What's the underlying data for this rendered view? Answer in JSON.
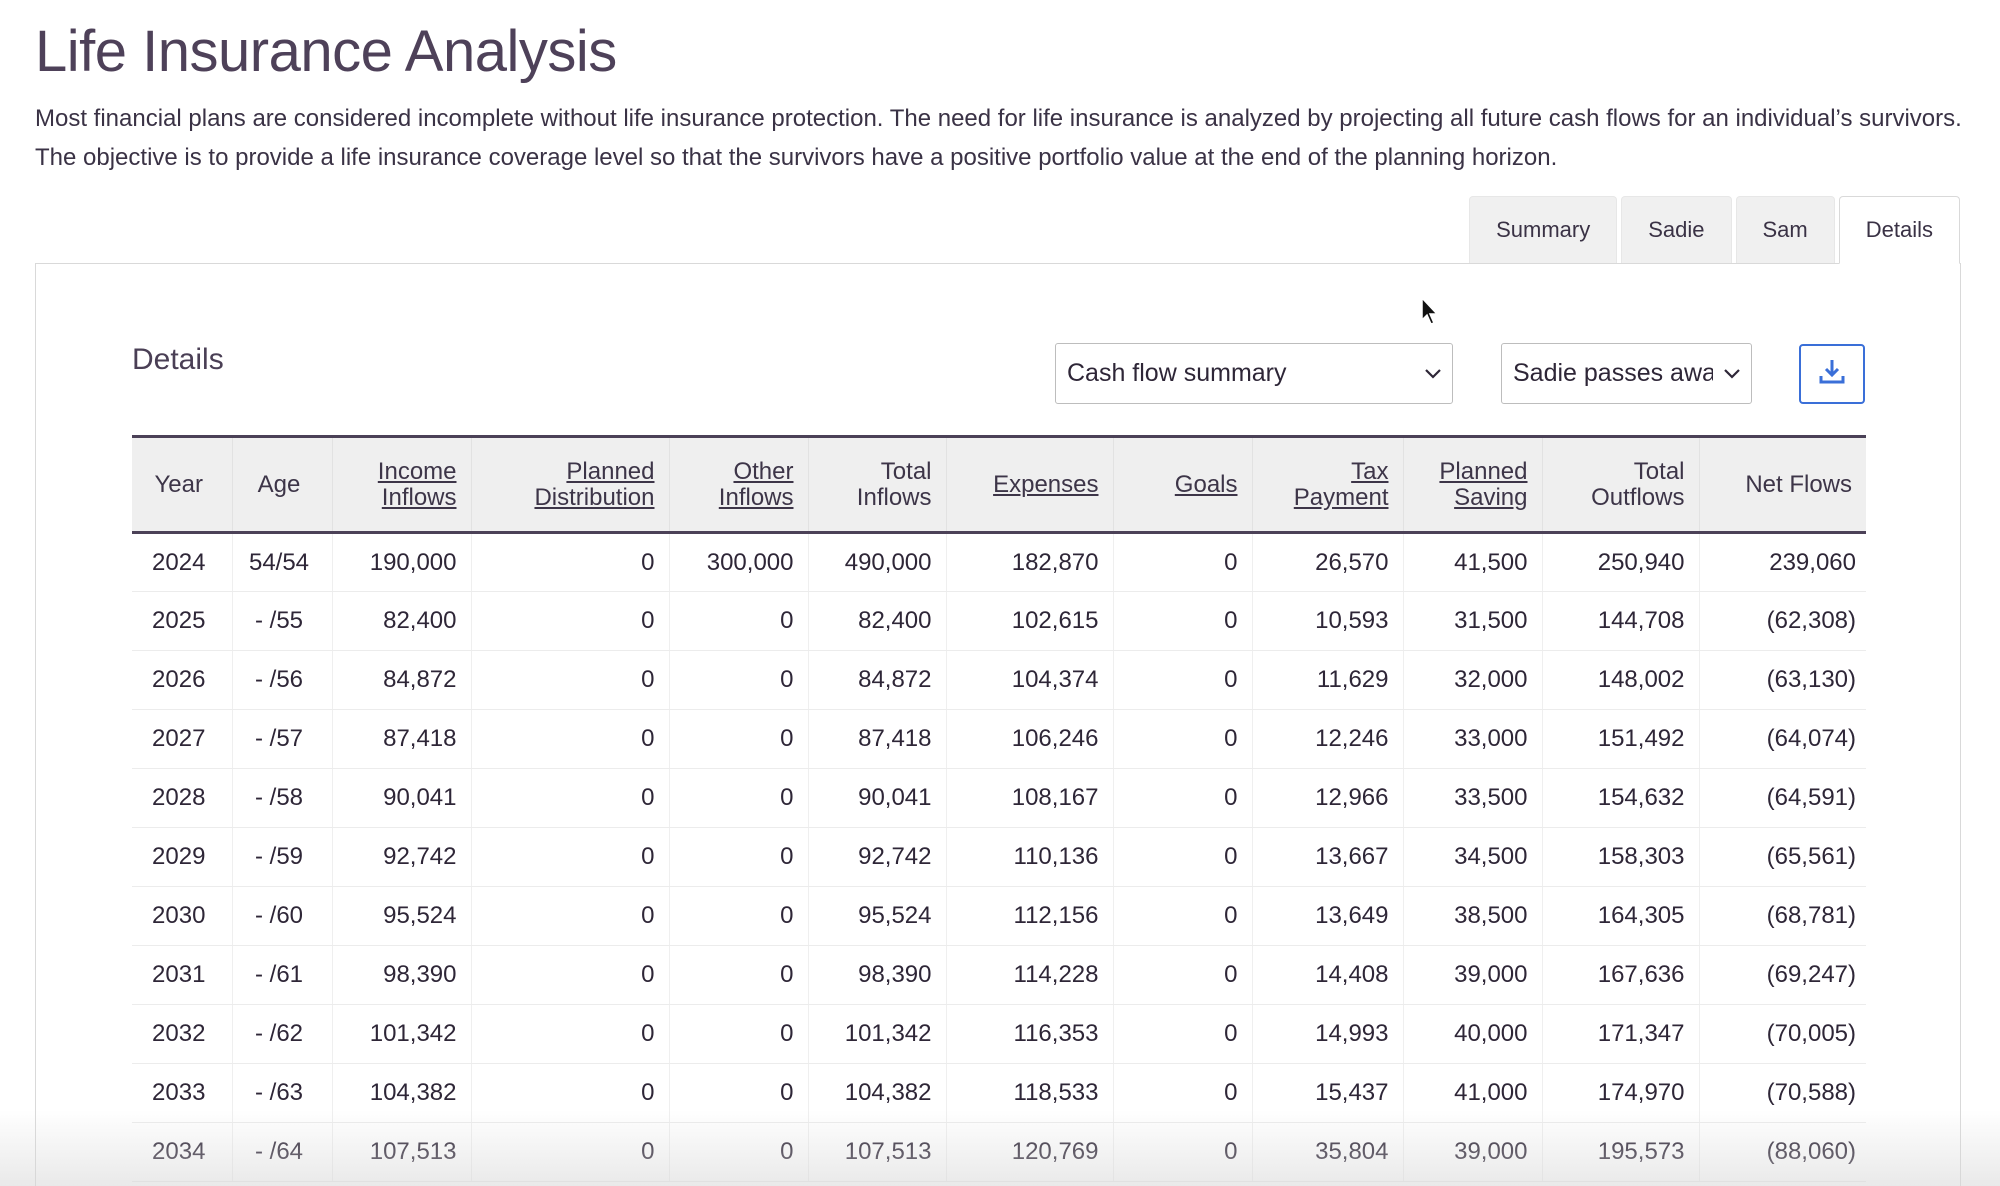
{
  "page": {
    "title": "Life Insurance Analysis",
    "intro": "Most financial plans are considered incomplete without life insurance protection. The need for life insurance is analyzed by projecting all future cash flows for an individual’s survivors. The objective is to provide a life insurance coverage level so that the survivors have a positive portfolio value at the end of the planning horizon."
  },
  "tabs": [
    {
      "label": "Summary",
      "active": false
    },
    {
      "label": "Sadie",
      "active": false
    },
    {
      "label": "Sam",
      "active": false
    },
    {
      "label": "Details",
      "active": true
    }
  ],
  "details": {
    "title": "Details",
    "view_select": {
      "value": "Cash flow summary"
    },
    "scenario_select": {
      "value": "Sadie passes away"
    },
    "download_icon": "download-icon"
  },
  "table": {
    "headers": [
      {
        "line1": "Year",
        "line2": "",
        "link": false
      },
      {
        "line1": "Age",
        "line2": "",
        "link": false
      },
      {
        "line1": "Income",
        "line2": "Inflows",
        "link": true
      },
      {
        "line1": "Planned",
        "line2": "Distribution",
        "link": true
      },
      {
        "line1": "Other",
        "line2": "Inflows",
        "link": true
      },
      {
        "line1": "Total",
        "line2": "Inflows",
        "link": false
      },
      {
        "line1": "Expenses",
        "line2": "",
        "link": true
      },
      {
        "line1": "Goals",
        "line2": "",
        "link": true
      },
      {
        "line1": "Tax",
        "line2": "Payment",
        "link": true
      },
      {
        "line1": "Planned",
        "line2": "Saving",
        "link": true
      },
      {
        "line1": "Total",
        "line2": "Outflows",
        "link": false
      },
      {
        "line1": "Net Flows",
        "line2": "",
        "link": false
      }
    ],
    "rows": [
      [
        "2024",
        "54/54",
        "190,000",
        "0",
        "300,000",
        "490,000",
        "182,870",
        "0",
        "26,570",
        "41,500",
        "250,940",
        "239,060"
      ],
      [
        "2025",
        "-  /55",
        "82,400",
        "0",
        "0",
        "82,400",
        "102,615",
        "0",
        "10,593",
        "31,500",
        "144,708",
        "(62,308)"
      ],
      [
        "2026",
        "-  /56",
        "84,872",
        "0",
        "0",
        "84,872",
        "104,374",
        "0",
        "11,629",
        "32,000",
        "148,002",
        "(63,130)"
      ],
      [
        "2027",
        "-  /57",
        "87,418",
        "0",
        "0",
        "87,418",
        "106,246",
        "0",
        "12,246",
        "33,000",
        "151,492",
        "(64,074)"
      ],
      [
        "2028",
        "-  /58",
        "90,041",
        "0",
        "0",
        "90,041",
        "108,167",
        "0",
        "12,966",
        "33,500",
        "154,632",
        "(64,591)"
      ],
      [
        "2029",
        "-  /59",
        "92,742",
        "0",
        "0",
        "92,742",
        "110,136",
        "0",
        "13,667",
        "34,500",
        "158,303",
        "(65,561)"
      ],
      [
        "2030",
        "-  /60",
        "95,524",
        "0",
        "0",
        "95,524",
        "112,156",
        "0",
        "13,649",
        "38,500",
        "164,305",
        "(68,781)"
      ],
      [
        "2031",
        "-  /61",
        "98,390",
        "0",
        "0",
        "98,390",
        "114,228",
        "0",
        "14,408",
        "39,000",
        "167,636",
        "(69,247)"
      ],
      [
        "2032",
        "-  /62",
        "101,342",
        "0",
        "0",
        "101,342",
        "116,353",
        "0",
        "14,993",
        "40,000",
        "171,347",
        "(70,005)"
      ],
      [
        "2033",
        "-  /63",
        "104,382",
        "0",
        "0",
        "104,382",
        "118,533",
        "0",
        "15,437",
        "41,000",
        "174,970",
        "(70,588)"
      ],
      [
        "2034",
        "-  /64",
        "107,513",
        "0",
        "0",
        "107,513",
        "120,769",
        "0",
        "35,804",
        "39,000",
        "195,573",
        "(88,060)"
      ]
    ]
  },
  "colors": {
    "title": "#4e4159",
    "table_rule": "#4b4157",
    "download_accent": "#3a6fd8"
  }
}
